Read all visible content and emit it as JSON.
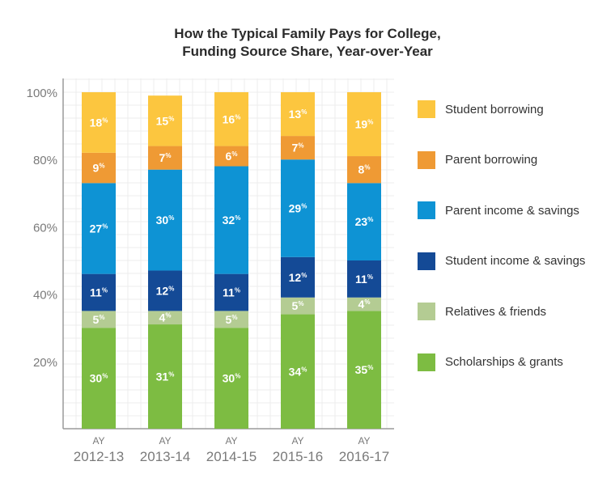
{
  "chart_data": {
    "type": "bar",
    "stacked": true,
    "title": "How the Typical Family Pays for College,",
    "subtitle": "Funding Source Share, Year-over-Year",
    "xlabel": "",
    "ylabel": "",
    "ylim": [
      0,
      100
    ],
    "y_ticks": [
      "100%",
      "80%",
      "60%",
      "40%",
      "20%"
    ],
    "y_tick_values": [
      100,
      80,
      60,
      40,
      20
    ],
    "category_prefix": "AY",
    "categories": [
      "2012-13",
      "2013-14",
      "2014-15",
      "2015-16",
      "2016-17"
    ],
    "series": [
      {
        "name": "Scholarships & grants",
        "color": "#7dbc42",
        "values": [
          30,
          31,
          30,
          34,
          35
        ]
      },
      {
        "name": "Relatives & friends",
        "color": "#b4cc93",
        "values": [
          5,
          4,
          5,
          5,
          4
        ]
      },
      {
        "name": "Student income & savings",
        "color": "#144a96",
        "values": [
          11,
          12,
          11,
          12,
          11
        ]
      },
      {
        "name": "Parent income & savings",
        "color": "#0e93d4",
        "values": [
          27,
          30,
          32,
          29,
          23
        ]
      },
      {
        "name": "Parent borrowing",
        "color": "#ef9a34",
        "values": [
          9,
          7,
          6,
          7,
          8
        ]
      },
      {
        "name": "Student borrowing",
        "color": "#fcc63f",
        "values": [
          18,
          15,
          16,
          13,
          19
        ]
      }
    ],
    "label_suffix": "%",
    "legend_position": "right",
    "grid": true
  }
}
